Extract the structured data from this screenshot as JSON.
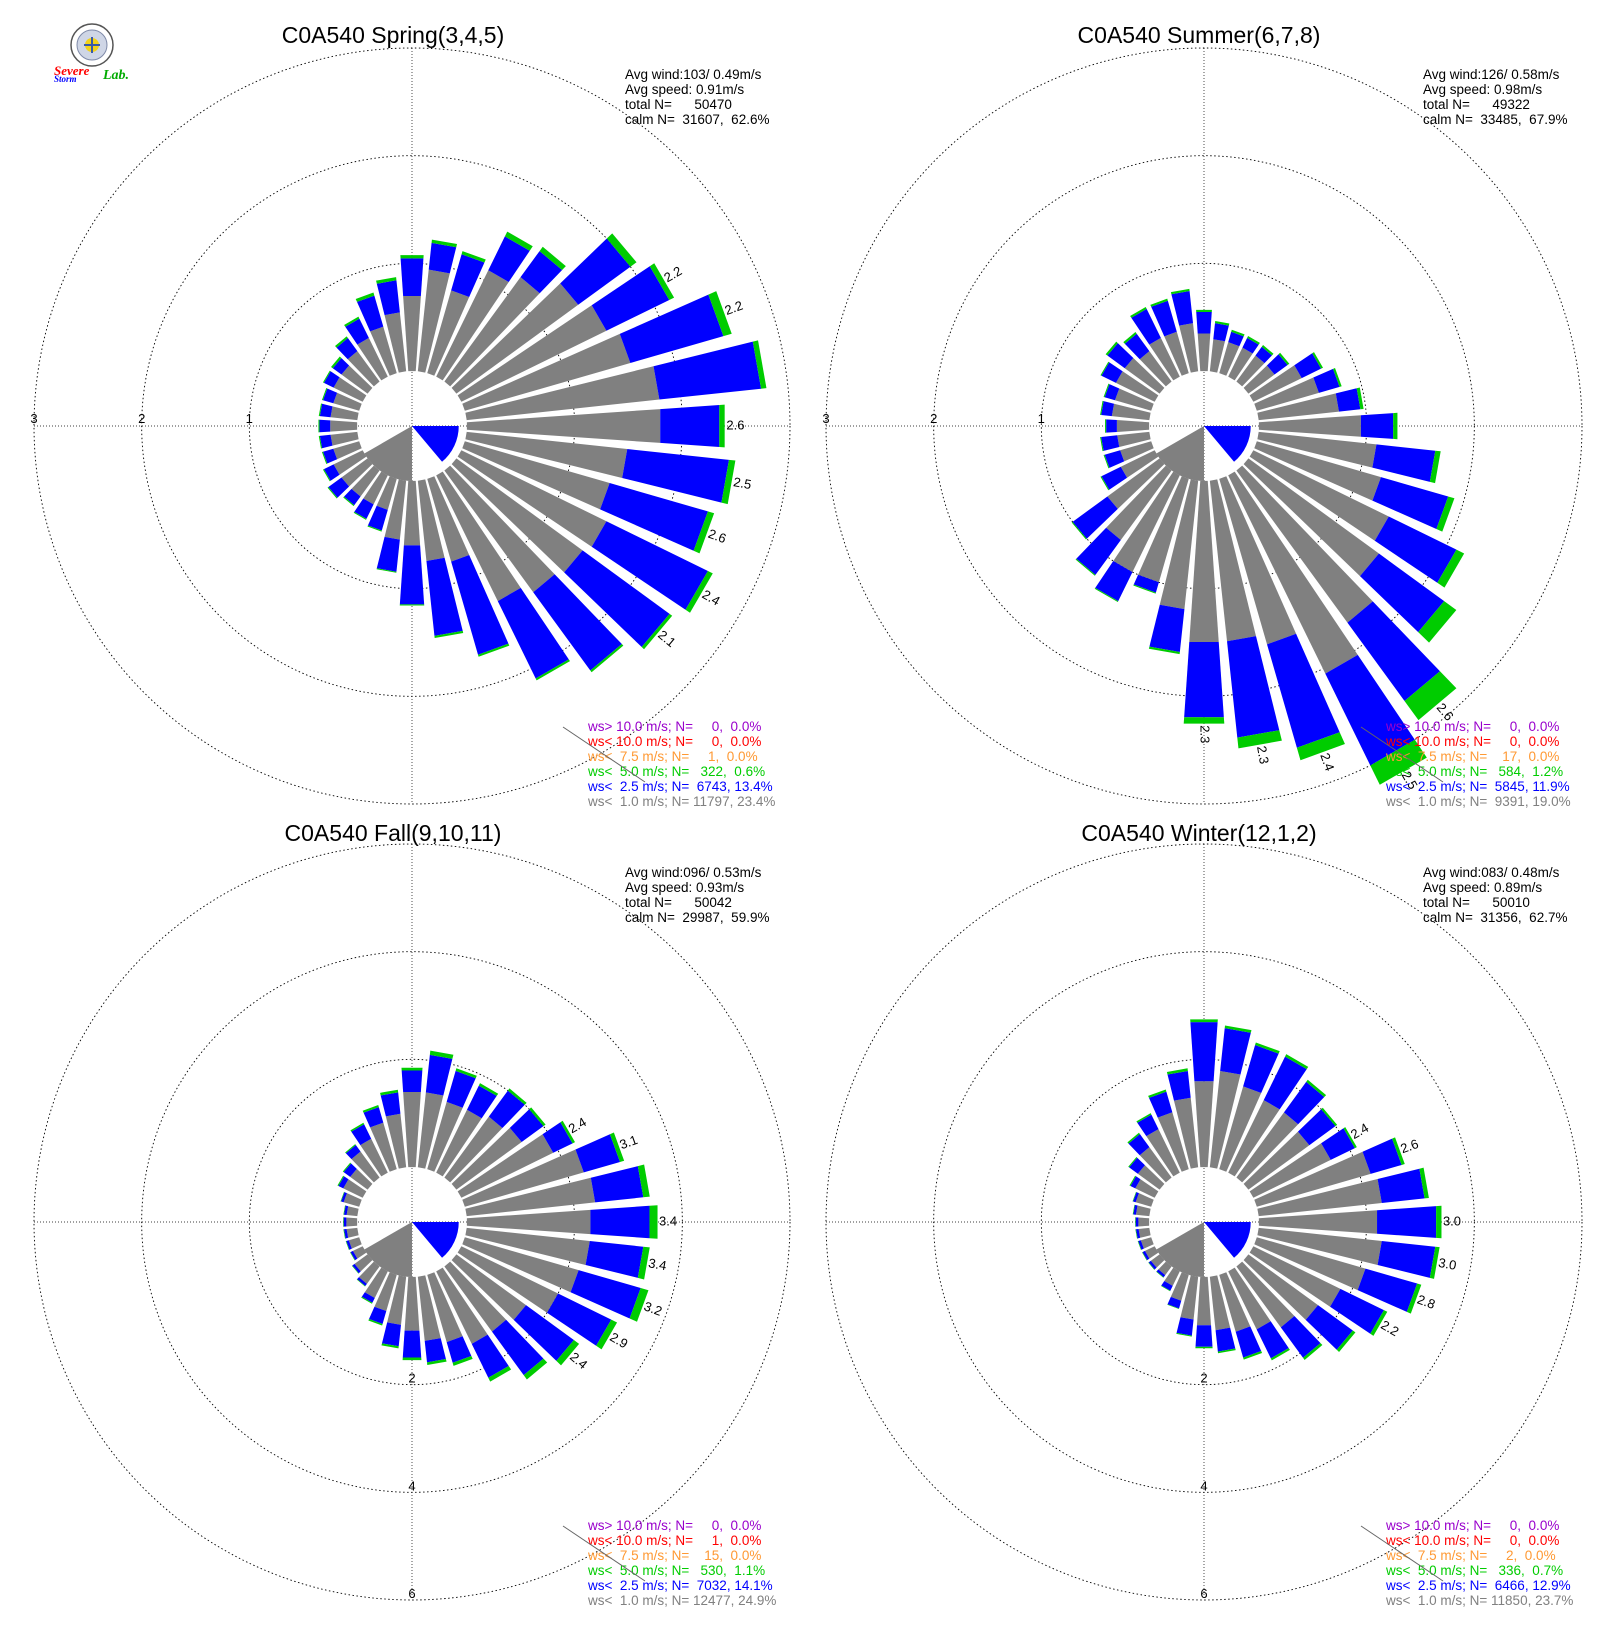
{
  "logo": {
    "word1": "Severe",
    "word2": "Storm",
    "word3": "Lab."
  },
  "colors": {
    "ws_gt10": "#9900cc",
    "ws_lt10": "#ff0000",
    "ws_lt75": "#ff9933",
    "ws_lt50": "#00cc00",
    "ws_lt25": "#0000ff",
    "ws_lt10calm": "#808080"
  },
  "chart_data": [
    {
      "type": "wind-rose",
      "title": "C0A540 Spring(3,4,5)",
      "stats": [
        "Avg wind:103/ 0.49m/s",
        "Avg speed: 0.91m/s",
        "total N=      50470",
        "calm N=  31607,  62.6%"
      ],
      "legend": [
        "ws> 10.0 m/s; N=     0,  0.0%",
        "ws< 10.0 m/s; N=     0,  0.0%",
        "ws<  7.5 m/s; N=     1,  0.0%",
        "ws<  5.0 m/s; N=   322,  0.6%",
        "ws<  2.5 m/s; N=  6743, 13.4%",
        "ws<  1.0 m/s; N= 11797, 23.4%"
      ],
      "rmax": 3,
      "axis_ticks": [
        "3",
        "2",
        "1"
      ],
      "tick_side": "left",
      "bins": 36,
      "calm_sector": [
        180,
        240
      ],
      "petals": {
        "gray": [
          0.7,
          0.95,
          0.8,
          1.1,
          1.2,
          1.4,
          1.5,
          1.6,
          1.8,
          1.8,
          1.5,
          1.4,
          1.5,
          1.45,
          1.4,
          1.3,
          0.8,
          0.75,
          0.6,
          0.55,
          0.3,
          0.3,
          0.3,
          0.3,
          0.3,
          0.25,
          0.25,
          0.25,
          0.25,
          0.25,
          0.3,
          0.3,
          0.35,
          0.4,
          0.45,
          0.55
        ],
        "blue": [
          0.35,
          0.25,
          0.35,
          0.35,
          0.3,
          0.6,
          0.65,
          0.9,
          0.95,
          0.55,
          0.95,
          0.95,
          1.05,
          1.0,
          0.9,
          0.8,
          0.9,
          0.7,
          0.55,
          0.3,
          0.2,
          0.15,
          0.1,
          0.15,
          0.1,
          0.1,
          0.1,
          0.1,
          0.1,
          0.1,
          0.1,
          0.1,
          0.15,
          0.2,
          0.3,
          0.3
        ],
        "green": [
          0.03,
          0.03,
          0.03,
          0.05,
          0.05,
          0.07,
          0.05,
          0.08,
          0.05,
          0.05,
          0.06,
          0.06,
          0.05,
          0.03,
          0.02,
          0.02,
          0.02,
          0.02,
          0.01,
          0.01,
          0.01,
          0.01,
          0.01,
          0.01,
          0.01,
          0.01,
          0.01,
          0.01,
          0.01,
          0.01,
          0.01,
          0.02,
          0.02,
          0.02,
          0.03,
          0.03
        ]
      },
      "petal_labels": [
        {
          "bin": 6,
          "text": "2.2"
        },
        {
          "bin": 7,
          "text": "2.2"
        },
        {
          "bin": 9,
          "text": "2.6"
        },
        {
          "bin": 10,
          "text": "2.5"
        },
        {
          "bin": 11,
          "text": "2.6"
        },
        {
          "bin": 12,
          "text": "2.4"
        },
        {
          "bin": 13,
          "text": "2.1"
        }
      ]
    },
    {
      "type": "wind-rose",
      "title": "C0A540 Summer(6,7,8)",
      "stats": [
        "Avg wind:126/ 0.58m/s",
        "Avg speed: 0.98m/s",
        "total N=      49322",
        "calm N=  33485,  67.9%"
      ],
      "legend": [
        "ws> 10.0 m/s; N=     0,  0.0%",
        "ws< 10.0 m/s; N=     0,  0.0%",
        "ws<  7.5 m/s; N=    17,  0.0%",
        "ws<  5.0 m/s; N=   584,  1.2%",
        "ws<  2.5 m/s; N=  5845, 11.9%",
        "ws<  1.0 m/s; N=  9391, 19.0%"
      ],
      "rmax": 3,
      "axis_ticks": [
        "3",
        "2",
        "1"
      ],
      "tick_side": "left",
      "bins": 36,
      "calm_sector": [
        180,
        240
      ],
      "petals": {
        "gray": [
          0.35,
          0.3,
          0.3,
          0.3,
          0.3,
          0.3,
          0.5,
          0.6,
          0.75,
          0.95,
          1.1,
          1.2,
          1.4,
          1.5,
          1.75,
          2.05,
          1.6,
          1.5,
          1.5,
          1.2,
          1.0,
          1.0,
          0.8,
          0.6,
          0.35,
          0.3,
          0.3,
          0.3,
          0.35,
          0.35,
          0.4,
          0.4,
          0.35,
          0.4,
          0.4,
          0.45
        ],
        "blue": [
          0.2,
          0.15,
          0.1,
          0.1,
          0.1,
          0.15,
          0.2,
          0.2,
          0.2,
          0.3,
          0.55,
          0.65,
          0.7,
          0.75,
          0.9,
          0.95,
          1.0,
          0.9,
          0.7,
          0.4,
          0.1,
          0.3,
          0.4,
          0.4,
          0.2,
          0.15,
          0.15,
          0.1,
          0.1,
          0.1,
          0.15,
          0.2,
          0.2,
          0.3,
          0.3,
          0.3
        ],
        "green": [
          0.02,
          0.02,
          0.02,
          0.02,
          0.02,
          0.02,
          0.02,
          0.02,
          0.03,
          0.04,
          0.05,
          0.06,
          0.08,
          0.14,
          0.22,
          0.2,
          0.12,
          0.1,
          0.06,
          0.02,
          0.01,
          0.01,
          0.01,
          0.01,
          0.01,
          0.01,
          0.01,
          0.01,
          0.01,
          0.01,
          0.01,
          0.02,
          0.02,
          0.02,
          0.02,
          0.02
        ]
      },
      "petal_labels": [
        {
          "bin": 14,
          "text": "2.6"
        },
        {
          "bin": 15,
          "text": "2.5"
        },
        {
          "bin": 16,
          "text": "2.4"
        },
        {
          "bin": 17,
          "text": "2.3"
        },
        {
          "bin": 18,
          "text": "2.3"
        }
      ]
    },
    {
      "type": "wind-rose",
      "title": "C0A540 Fall(9,10,11)",
      "stats": [
        "Avg wind:096/ 0.53m/s",
        "Avg speed: 0.93m/s",
        "total N=      50042",
        "calm N=  29987,  59.9%"
      ],
      "legend": [
        "ws> 10.0 m/s; N=     0,  0.0%",
        "ws< 10.0 m/s; N=     1,  0.0%",
        "ws<  7.5 m/s; N=    15,  0.0%",
        "ws<  5.0 m/s; N=   530,  1.1%",
        "ws<  2.5 m/s; N=  7032, 14.1%",
        "ws<  1.0 m/s; N= 12477, 24.9%"
      ],
      "rmax": 6,
      "axis_ticks": [
        "2",
        "4",
        "6"
      ],
      "tick_side": "bottom",
      "bins": 36,
      "calm_sector": [
        180,
        240
      ],
      "petals": {
        "gray": [
          1.4,
          1.4,
          1.3,
          1.3,
          1.4,
          1.5,
          1.9,
          2.3,
          2.4,
          2.3,
          2.3,
          2.2,
          2.0,
          1.6,
          1.5,
          1.5,
          1.3,
          1.2,
          1.0,
          0.9,
          0.7,
          0.55,
          0.4,
          0.3,
          0.2,
          0.2,
          0.2,
          0.2,
          0.2,
          0.3,
          0.4,
          0.4,
          0.6,
          0.7,
          0.9,
          1.0
        ],
        "blue": [
          0.4,
          0.7,
          0.6,
          0.5,
          0.6,
          0.5,
          0.4,
          0.7,
          0.9,
          1.1,
          1.0,
          1.2,
          1.1,
          1.1,
          1.0,
          0.7,
          0.4,
          0.4,
          0.5,
          0.4,
          0.25,
          0.1,
          0.05,
          0.05,
          0.05,
          0.05,
          0.05,
          0.05,
          0.05,
          0.05,
          0.1,
          0.15,
          0.15,
          0.3,
          0.3,
          0.4
        ],
        "green": [
          0.05,
          0.08,
          0.05,
          0.05,
          0.05,
          0.05,
          0.05,
          0.08,
          0.12,
          0.15,
          0.12,
          0.15,
          0.12,
          0.12,
          0.1,
          0.08,
          0.06,
          0.05,
          0.05,
          0.04,
          0.03,
          0.02,
          0.01,
          0.01,
          0.01,
          0.01,
          0.01,
          0.01,
          0.01,
          0.01,
          0.02,
          0.02,
          0.02,
          0.03,
          0.04,
          0.05
        ]
      },
      "petal_labels": [
        {
          "bin": 6,
          "text": "2.4"
        },
        {
          "bin": 7,
          "text": "3.1"
        },
        {
          "bin": 9,
          "text": "3.4"
        },
        {
          "bin": 10,
          "text": "3.4"
        },
        {
          "bin": 11,
          "text": "3.2"
        },
        {
          "bin": 12,
          "text": "2.9"
        },
        {
          "bin": 13,
          "text": "2.4"
        }
      ]
    },
    {
      "type": "wind-rose",
      "title": "C0A540 Winter(12,1,2)",
      "stats": [
        "Avg wind:083/ 0.48m/s",
        "Avg speed: 0.89m/s",
        "total N=      50010",
        "calm N=  31356,  62.7%"
      ],
      "legend": [
        "ws> 10.0 m/s; N=     0,  0.0%",
        "ws< 10.0 m/s; N=     0,  0.0%",
        "ws<  7.5 m/s; N=     2,  0.0%",
        "ws<  5.0 m/s; N=   336,  0.7%",
        "ws<  2.5 m/s; N=  6466, 12.9%",
        "ws<  1.0 m/s; N= 11850, 23.7%"
      ],
      "rmax": 6,
      "axis_ticks": [
        "2",
        "4",
        "6"
      ],
      "tick_side": "bottom",
      "bins": 36,
      "calm_sector": [
        180,
        240
      ],
      "petals": {
        "gray": [
          1.6,
          1.8,
          1.6,
          1.5,
          1.5,
          1.4,
          1.6,
          2.2,
          2.3,
          2.2,
          2.3,
          2.1,
          1.8,
          1.6,
          1.4,
          1.2,
          1.1,
          1.0,
          0.9,
          0.8,
          0.5,
          0.3,
          0.2,
          0.2,
          0.2,
          0.2,
          0.2,
          0.2,
          0.25,
          0.3,
          0.4,
          0.5,
          0.7,
          0.9,
          1.1,
          1.3
        ],
        "blue": [
          1.1,
          0.8,
          0.8,
          0.9,
          0.7,
          0.6,
          0.5,
          0.6,
          0.8,
          1.1,
          1.0,
          1.0,
          0.9,
          0.8,
          0.7,
          0.6,
          0.5,
          0.4,
          0.4,
          0.3,
          0.15,
          0.1,
          0.05,
          0.05,
          0.05,
          0.05,
          0.05,
          0.05,
          0.05,
          0.05,
          0.1,
          0.2,
          0.3,
          0.3,
          0.4,
          0.5
        ],
        "green": [
          0.05,
          0.05,
          0.05,
          0.05,
          0.05,
          0.04,
          0.04,
          0.06,
          0.08,
          0.1,
          0.08,
          0.08,
          0.07,
          0.06,
          0.05,
          0.04,
          0.04,
          0.03,
          0.03,
          0.02,
          0.01,
          0.01,
          0.01,
          0.01,
          0.01,
          0.01,
          0.01,
          0.01,
          0.01,
          0.01,
          0.02,
          0.02,
          0.03,
          0.03,
          0.04,
          0.05
        ]
      },
      "petal_labels": [
        {
          "bin": 6,
          "text": "2.4"
        },
        {
          "bin": 7,
          "text": "2.6"
        },
        {
          "bin": 9,
          "text": "3.0"
        },
        {
          "bin": 10,
          "text": "3.0"
        },
        {
          "bin": 11,
          "text": "2.8"
        },
        {
          "bin": 12,
          "text": "2.2"
        }
      ]
    }
  ]
}
